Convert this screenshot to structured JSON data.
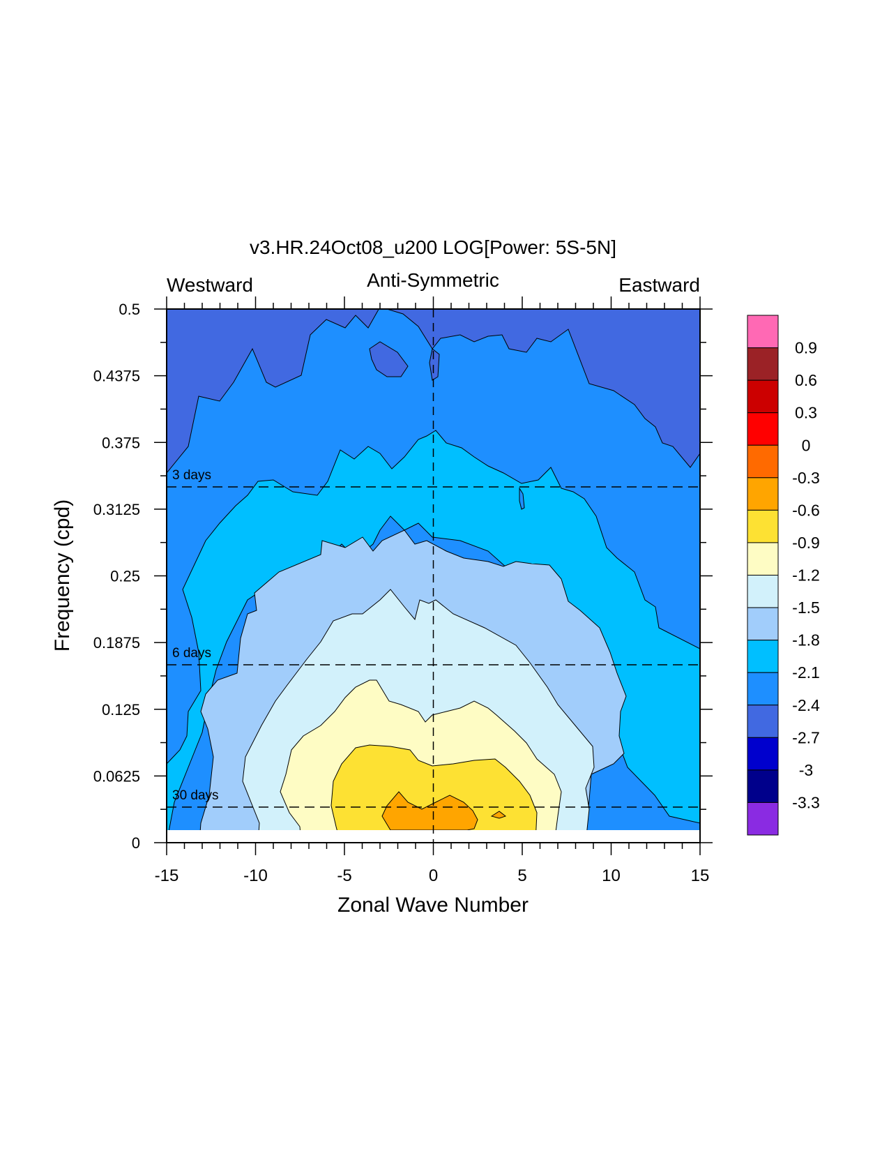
{
  "chart_data": {
    "type": "heatmap",
    "title": "v3.HR.24Oct08_u200 LOG[Power: 5S-5N]",
    "subtitle_left": "Westward",
    "subtitle_center": "Anti-Symmetric",
    "subtitle_right": "Eastward",
    "xlabel": "Zonal Wave Number",
    "ylabel": "Frequency (cpd)",
    "xlim": [
      -15,
      15
    ],
    "ylim": [
      0,
      0.5
    ],
    "x_ticks": [
      -15,
      -10,
      -5,
      0,
      5,
      10,
      15
    ],
    "x_tick_labels": [
      "-15",
      "-10",
      "-5",
      "0",
      "5",
      "10",
      "15"
    ],
    "y_ticks": [
      0,
      0.0625,
      0.125,
      0.1875,
      0.25,
      0.3125,
      0.375,
      0.4375,
      0.5
    ],
    "y_tick_labels": [
      "0",
      "0.0625",
      "0.125",
      "0.1875",
      "0.25",
      "0.3125",
      "0.375",
      "0.4375",
      "0.5"
    ],
    "reference_lines": [
      {
        "label": "3 days",
        "frequency": 0.3333
      },
      {
        "label": "6 days",
        "frequency": 0.1667
      },
      {
        "label": "30 days",
        "frequency": 0.0333
      }
    ],
    "colorbar": {
      "levels": [
        "0.9",
        "0.6",
        "0.3",
        "0",
        "-0.3",
        "-0.6",
        "-0.9",
        "-1.2",
        "-1.5",
        "-1.8",
        "-2.1",
        "-2.4",
        "-2.7",
        "-3",
        "-3.3"
      ],
      "colors_top_to_bottom": [
        "#ff69b4",
        "#9b2226",
        "#cc0000",
        "#ff0000",
        "#ff6a00",
        "#ffa500",
        "#fde133",
        "#fefcc4",
        "#d2f1fb",
        "#a1cdfb",
        "#00bfff",
        "#1e8fff",
        "#4169e1",
        "#0000cd",
        "#00008b",
        "#8a2be2"
      ]
    },
    "contour_fields": [
      {
        "level": -2.7,
        "color": "#4169e1",
        "x": [
          -15,
          15
        ],
        "y_range": [
          0.01,
          0.5
        ]
      },
      {
        "level": -2.4,
        "color": "#1e8fff",
        "center_x": 0,
        "peak_frequency": 0.46,
        "edge_frequency": 0.2
      },
      {
        "level": -2.1,
        "color": "#00bfff",
        "center_x": 0,
        "peak_frequency": 0.39,
        "edge_frequency": 0.01
      },
      {
        "level": -1.8,
        "color": "#a1cdfb",
        "center_x": 0,
        "peak_frequency": 0.29,
        "x_extent": [
          -11.5,
          12
        ]
      },
      {
        "level": -1.5,
        "color": "#d2f1fb",
        "center_x": 0,
        "peak_frequency": 0.22,
        "x_extent": [
          -10.5,
          9.5
        ]
      },
      {
        "level": -1.2,
        "color": "#fefcc4",
        "center_x": -1,
        "peak_frequency": 0.148,
        "x_extent": [
          -7,
          7.5
        ]
      },
      {
        "level": -0.9,
        "color": "#fde133",
        "center_x": -1,
        "peak_frequency": 0.093,
        "x_extent": [
          -5.5,
          6
        ]
      },
      {
        "level": -0.6,
        "color": "#ffa500",
        "center_x": -1,
        "peak_frequency": 0.045,
        "x_extent": [
          -2.7,
          2.7
        ]
      }
    ]
  }
}
